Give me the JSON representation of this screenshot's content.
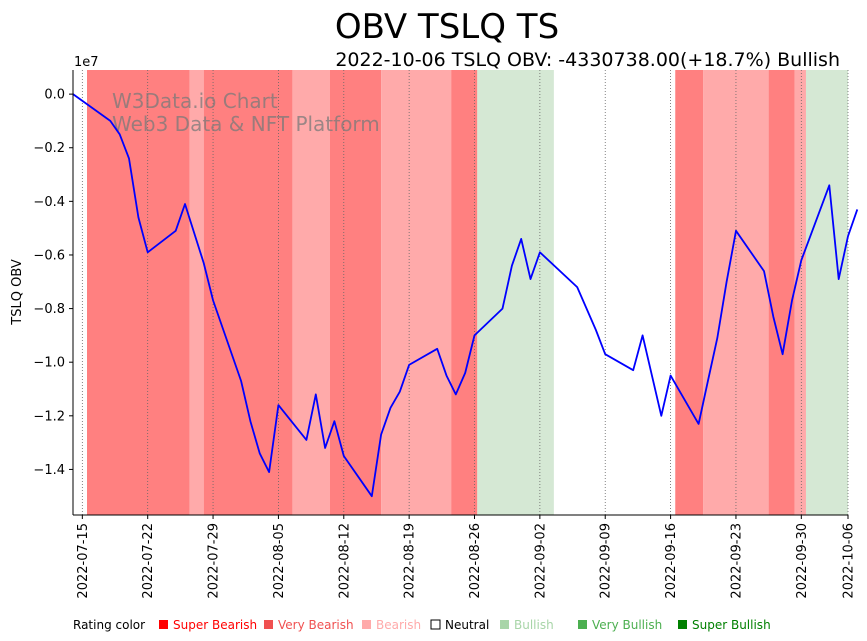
{
  "chart_data": {
    "type": "line",
    "title": "OBV TSLQ TS",
    "subtitle": "2022-10-06 TSLQ OBV: -4330738.00(+18.7%) Bullish",
    "ylabel": "TSLQ OBV",
    "y_multiplier_label": "1e7",
    "ylim": [
      -1.57,
      0.09
    ],
    "yticks": [
      0.0,
      -0.2,
      -0.4,
      -0.6,
      -0.8,
      -1.0,
      -1.2,
      -1.4
    ],
    "ytick_labels": [
      "0.0",
      "−0.2",
      "−0.4",
      "−0.6",
      "−0.8",
      "−1.0",
      "−1.2",
      "−1.4"
    ],
    "xlim": [
      0,
      83
    ],
    "xticks": [
      {
        "label": "2022-07-15",
        "day": 1
      },
      {
        "label": "2022-07-22",
        "day": 8
      },
      {
        "label": "2022-07-29",
        "day": 15
      },
      {
        "label": "2022-08-05",
        "day": 22
      },
      {
        "label": "2022-08-12",
        "day": 29
      },
      {
        "label": "2022-08-19",
        "day": 36
      },
      {
        "label": "2022-08-26",
        "day": 43
      },
      {
        "label": "2022-09-02",
        "day": 50
      },
      {
        "label": "2022-09-09",
        "day": 57
      },
      {
        "label": "2022-09-16",
        "day": 64
      },
      {
        "label": "2022-09-23",
        "day": 71
      },
      {
        "label": "2022-09-30",
        "day": 78
      },
      {
        "label": "2022-10-06",
        "day": 84
      }
    ],
    "series": [
      {
        "name": "OBV",
        "color": "#0000ff",
        "points": [
          [
            0,
            0.0
          ],
          [
            4,
            -0.1
          ],
          [
            5,
            -0.15
          ],
          [
            6,
            -0.24
          ],
          [
            7,
            -0.46
          ],
          [
            8,
            -0.59
          ],
          [
            11,
            -0.51
          ],
          [
            12,
            -0.41
          ],
          [
            14,
            -0.63
          ],
          [
            15,
            -0.77
          ],
          [
            18,
            -1.07
          ],
          [
            19,
            -1.22
          ],
          [
            20,
            -1.34
          ],
          [
            21,
            -1.41
          ],
          [
            22,
            -1.16
          ],
          [
            25,
            -1.29
          ],
          [
            26,
            -1.12
          ],
          [
            27,
            -1.32
          ],
          [
            28,
            -1.22
          ],
          [
            29,
            -1.35
          ],
          [
            32,
            -1.5
          ],
          [
            33,
            -1.27
          ],
          [
            34,
            -1.17
          ],
          [
            35,
            -1.11
          ],
          [
            36,
            -1.01
          ],
          [
            39,
            -0.95
          ],
          [
            40,
            -1.05
          ],
          [
            41,
            -1.12
          ],
          [
            42,
            -1.04
          ],
          [
            43,
            -0.9
          ],
          [
            46,
            -0.8
          ],
          [
            47,
            -0.64
          ],
          [
            48,
            -0.54
          ],
          [
            49,
            -0.69
          ],
          [
            50,
            -0.59
          ],
          [
            54,
            -0.72
          ],
          [
            56,
            -0.88
          ],
          [
            57,
            -0.97
          ],
          [
            60,
            -1.03
          ],
          [
            61,
            -0.9
          ],
          [
            63,
            -1.2
          ],
          [
            64,
            -1.05
          ],
          [
            67,
            -1.23
          ],
          [
            68,
            -1.07
          ],
          [
            69,
            -0.91
          ],
          [
            70,
            -0.7
          ],
          [
            71,
            -0.51
          ],
          [
            74,
            -0.66
          ],
          [
            75,
            -0.83
          ],
          [
            76,
            -0.97
          ],
          [
            77,
            -0.77
          ],
          [
            78,
            -0.62
          ],
          [
            81,
            -0.34
          ],
          [
            82,
            -0.69
          ],
          [
            83,
            -0.53
          ],
          [
            84,
            -0.43
          ]
        ]
      }
    ],
    "rating_bands": [
      {
        "start": 1.5,
        "end": 12.5,
        "rating": "Super Bearish"
      },
      {
        "start": 12.5,
        "end": 14,
        "rating": "Bearish"
      },
      {
        "start": 14,
        "end": 23.5,
        "rating": "Super Bearish"
      },
      {
        "start": 23.5,
        "end": 27.5,
        "rating": "Bearish"
      },
      {
        "start": 27.5,
        "end": 33,
        "rating": "Super Bearish"
      },
      {
        "start": 33,
        "end": 40.5,
        "rating": "Bearish"
      },
      {
        "start": 40.5,
        "end": 43.3,
        "rating": "Super Bearish"
      },
      {
        "start": 43.3,
        "end": 51.5,
        "rating": "Bullish"
      },
      {
        "start": 64.5,
        "end": 67.5,
        "rating": "Super Bearish"
      },
      {
        "start": 67.5,
        "end": 74.5,
        "rating": "Bearish"
      },
      {
        "start": 74.5,
        "end": 77.3,
        "rating": "Super Bearish"
      },
      {
        "start": 77.3,
        "end": 78.5,
        "rating": "Bearish"
      },
      {
        "start": 78.5,
        "end": 84,
        "rating": "Bullish"
      }
    ],
    "watermark": [
      "W3Data.io Chart",
      "Web3 Data & NFT Platform"
    ],
    "legend": {
      "title": "Rating color",
      "placement": "bottom",
      "items": [
        {
          "label": "Super Bearish",
          "color": "#ff0000",
          "band_color": "#ff8080"
        },
        {
          "label": "Very Bearish",
          "color": "#f05050",
          "band_color": "#ff8080"
        },
        {
          "label": "Bearish",
          "color": "#ffaaaa",
          "band_color": "#ffaaaa"
        },
        {
          "label": "Neutral",
          "color": "#ffffff",
          "text_color": "#000000"
        },
        {
          "label": "Bullish",
          "color": "#a8d5a8",
          "band_color": "#d5e8d4"
        },
        {
          "label": "Very Bullish",
          "color": "#4caf50"
        },
        {
          "label": "Super Bullish",
          "color": "#008000"
        }
      ]
    }
  }
}
